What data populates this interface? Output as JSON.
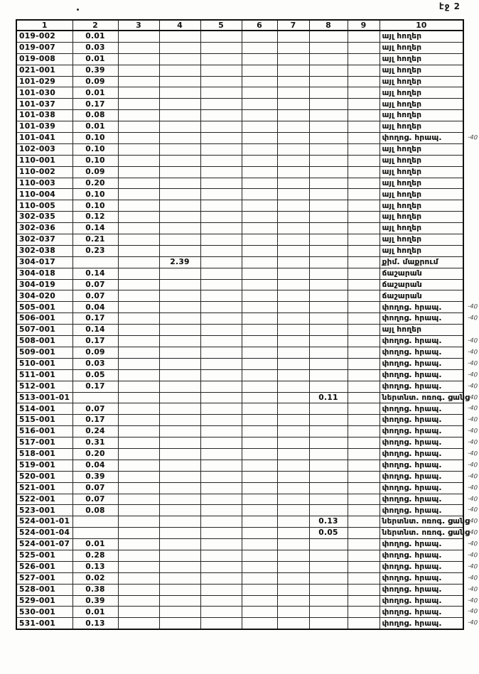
{
  "page": {
    "label": "էջ 2"
  },
  "table": {
    "headers": [
      "1",
      "2",
      "3",
      "4",
      "5",
      "6",
      "7",
      "8",
      "9",
      "10"
    ],
    "land_use_values": {
      "other_lands": "այլ հողեր",
      "streets_squares": "փողոց. հրապ.",
      "dry_cleaning": "քիմ. մաքրում",
      "canteen": "ճաշարան",
      "irrigation_network": "ներտնտ. ոռոգ. ցանց"
    },
    "rows": [
      {
        "code": "019-002",
        "v2": "0.01",
        "v4": "",
        "v8": "",
        "use": "այլ հողեր",
        "note": ""
      },
      {
        "code": "019-007",
        "v2": "0.03",
        "v4": "",
        "v8": "",
        "use": "այլ հողեր",
        "note": ""
      },
      {
        "code": "019-008",
        "v2": "0.01",
        "v4": "",
        "v8": "",
        "use": "այլ հողեր",
        "note": ""
      },
      {
        "code": "021-001",
        "v2": "0.39",
        "v4": "",
        "v8": "",
        "use": "այլ հողեր",
        "note": ""
      },
      {
        "code": "101-029",
        "v2": "0.09",
        "v4": "",
        "v8": "",
        "use": "այլ հողեր",
        "note": ""
      },
      {
        "code": "101-030",
        "v2": "0.01",
        "v4": "",
        "v8": "",
        "use": "այլ հողեր",
        "note": ""
      },
      {
        "code": "101-037",
        "v2": "0.17",
        "v4": "",
        "v8": "",
        "use": "այլ հողեր",
        "note": ""
      },
      {
        "code": "101-038",
        "v2": "0.08",
        "v4": "",
        "v8": "",
        "use": "այլ հողեր",
        "note": ""
      },
      {
        "code": "101-039",
        "v2": "0.01",
        "v4": "",
        "v8": "",
        "use": "այլ հողեր",
        "note": ""
      },
      {
        "code": "101-041",
        "v2": "0.10",
        "v4": "",
        "v8": "",
        "use": "փողոց. հրապ.",
        "note": "-40"
      },
      {
        "code": "102-003",
        "v2": "0.10",
        "v4": "",
        "v8": "",
        "use": "այլ հողեր",
        "note": ""
      },
      {
        "code": "110-001",
        "v2": "0.10",
        "v4": "",
        "v8": "",
        "use": "այլ հողեր",
        "note": ""
      },
      {
        "code": "110-002",
        "v2": "0.09",
        "v4": "",
        "v8": "",
        "use": "այլ հողեր",
        "note": ""
      },
      {
        "code": "110-003",
        "v2": "0.20",
        "v4": "",
        "v8": "",
        "use": "այլ հողեր",
        "note": ""
      },
      {
        "code": "110-004",
        "v2": "0.10",
        "v4": "",
        "v8": "",
        "use": "այլ հողեր",
        "note": ""
      },
      {
        "code": "110-005",
        "v2": "0.10",
        "v4": "",
        "v8": "",
        "use": "այլ հողեր",
        "note": ""
      },
      {
        "code": "302-035",
        "v2": "0.12",
        "v4": "",
        "v8": "",
        "use": "այլ հողեր",
        "note": ""
      },
      {
        "code": "302-036",
        "v2": "0.14",
        "v4": "",
        "v8": "",
        "use": "այլ հողեր",
        "note": ""
      },
      {
        "code": "302-037",
        "v2": "0.21",
        "v4": "",
        "v8": "",
        "use": "այլ հողեր",
        "note": ""
      },
      {
        "code": "302-038",
        "v2": "0.23",
        "v4": "",
        "v8": "",
        "use": "այլ հողեր",
        "note": ""
      },
      {
        "code": "304-017",
        "v2": "",
        "v4": "2.39",
        "v8": "",
        "use": "քիմ. մաքրում",
        "note": ""
      },
      {
        "code": "304-018",
        "v2": "0.14",
        "v4": "",
        "v8": "",
        "use": "ճաշարան",
        "note": ""
      },
      {
        "code": "304-019",
        "v2": "0.07",
        "v4": "",
        "v8": "",
        "use": "ճաշարան",
        "note": ""
      },
      {
        "code": "304-020",
        "v2": "0.07",
        "v4": "",
        "v8": "",
        "use": "ճաշարան",
        "note": ""
      },
      {
        "code": "505-001",
        "v2": "0.04",
        "v4": "",
        "v8": "",
        "use": "փողոց. հրապ.",
        "note": "-40"
      },
      {
        "code": "506-001",
        "v2": "0.17",
        "v4": "",
        "v8": "",
        "use": "փողոց. հրապ.",
        "note": "-40"
      },
      {
        "code": "507-001",
        "v2": "0.14",
        "v4": "",
        "v8": "",
        "use": "այլ հողեր",
        "note": ""
      },
      {
        "code": "508-001",
        "v2": "0.17",
        "v4": "",
        "v8": "",
        "use": "փողոց. հրապ.",
        "note": "-40"
      },
      {
        "code": "509-001",
        "v2": "0.09",
        "v4": "",
        "v8": "",
        "use": "փողոց. հրապ.",
        "note": "-40"
      },
      {
        "code": "510-001",
        "v2": "0.03",
        "v4": "",
        "v8": "",
        "use": "փողոց. հրապ.",
        "note": "-40"
      },
      {
        "code": "511-001",
        "v2": "0.05",
        "v4": "",
        "v8": "",
        "use": "փողոց. հրապ.",
        "note": "-40"
      },
      {
        "code": "512-001",
        "v2": "0.17",
        "v4": "",
        "v8": "",
        "use": "փողոց. հրապ.",
        "note": "-40"
      },
      {
        "code": "513-001-01",
        "v2": "",
        "v4": "",
        "v8": "0.11",
        "use": "ներտնտ. ոռոգ. ցանց",
        "note": "-40"
      },
      {
        "code": "514-001",
        "v2": "0.07",
        "v4": "",
        "v8": "",
        "use": "փողոց. հրապ.",
        "note": "-40"
      },
      {
        "code": "515-001",
        "v2": "0.17",
        "v4": "",
        "v8": "",
        "use": "փողոց. հրապ.",
        "note": "-40"
      },
      {
        "code": "516-001",
        "v2": "0.24",
        "v4": "",
        "v8": "",
        "use": "փողոց. հրապ.",
        "note": "-40"
      },
      {
        "code": "517-001",
        "v2": "0.31",
        "v4": "",
        "v8": "",
        "use": "փողոց. հրապ.",
        "note": "-40"
      },
      {
        "code": "518-001",
        "v2": "0.20",
        "v4": "",
        "v8": "",
        "use": "փողոց. հրապ.",
        "note": "-40"
      },
      {
        "code": "519-001",
        "v2": "0.04",
        "v4": "",
        "v8": "",
        "use": "փողոց. հրապ.",
        "note": "-40"
      },
      {
        "code": "520-001",
        "v2": "0.39",
        "v4": "",
        "v8": "",
        "use": "փողոց. հրապ.",
        "note": "-40"
      },
      {
        "code": "521-001",
        "v2": "0.07",
        "v4": "",
        "v8": "",
        "use": "փողոց. հրապ.",
        "note": "-40"
      },
      {
        "code": "522-001",
        "v2": "0.07",
        "v4": "",
        "v8": "",
        "use": "փողոց. հրապ.",
        "note": "-40"
      },
      {
        "code": "523-001",
        "v2": "0.08",
        "v4": "",
        "v8": "",
        "use": "փողոց. հրապ.",
        "note": "-40"
      },
      {
        "code": "524-001-01",
        "v2": "",
        "v4": "",
        "v8": "0.13",
        "use": "ներտնտ. ոռոգ. ցանց",
        "note": "-40"
      },
      {
        "code": "524-001-04",
        "v2": "",
        "v4": "",
        "v8": "0.05",
        "use": "ներտնտ. ոռոգ. ցանց",
        "note": "-40"
      },
      {
        "code": "524-001-07",
        "v2": "0.01",
        "v4": "",
        "v8": "",
        "use": "փողոց. հրապ.",
        "note": "-40"
      },
      {
        "code": "525-001",
        "v2": "0.28",
        "v4": "",
        "v8": "",
        "use": "փողոց. հրապ.",
        "note": "-40"
      },
      {
        "code": "526-001",
        "v2": "0.13",
        "v4": "",
        "v8": "",
        "use": "փողոց. հրապ.",
        "note": "-40"
      },
      {
        "code": "527-001",
        "v2": "0.02",
        "v4": "",
        "v8": "",
        "use": "փողոց. հրապ.",
        "note": "-40"
      },
      {
        "code": "528-001",
        "v2": "0.38",
        "v4": "",
        "v8": "",
        "use": "փողոց. հրապ.",
        "note": "-40"
      },
      {
        "code": "529-001",
        "v2": "0.39",
        "v4": "",
        "v8": "",
        "use": "փողոց. հրապ.",
        "note": "-40"
      },
      {
        "code": "530-001",
        "v2": "0.01",
        "v4": "",
        "v8": "",
        "use": "փողոց. հրապ.",
        "note": "-40"
      },
      {
        "code": "531-001",
        "v2": "0.13",
        "v4": "",
        "v8": "",
        "use": "փողոց. հրապ.",
        "note": "-40"
      }
    ]
  }
}
